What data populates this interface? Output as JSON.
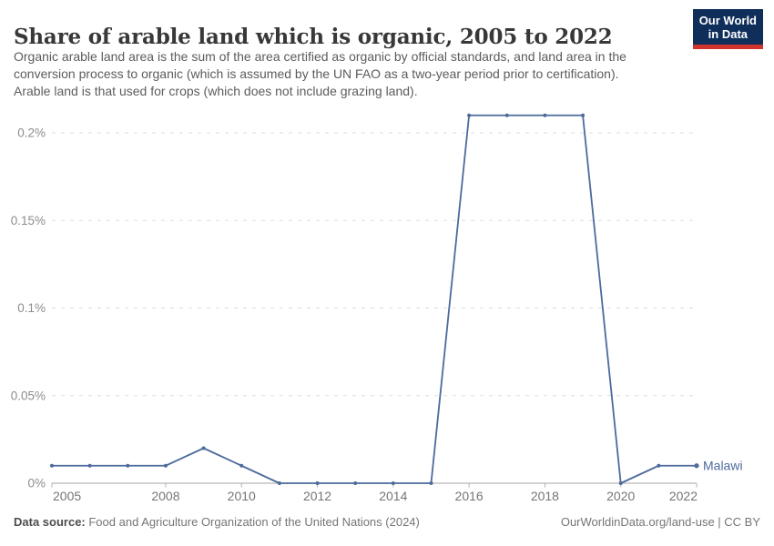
{
  "header": {
    "title": "Share of arable land which is organic, 2005 to 2022",
    "subtitle_lines": [
      "Organic arable land area is the sum of the area certified as organic by official standards, and land area in the",
      "conversion process to organic (which is assumed by the UN FAO as a two-year period prior to certification).",
      "Arable land is that used for crops (which does not include grazing land)."
    ],
    "logo": {
      "line1": "Our World",
      "line2": "in Data",
      "bg": "#0f2e5a",
      "accent": "#d0342c"
    }
  },
  "footer": {
    "source_label": "Data source:",
    "source_text": " Food and Agriculture Organization of the United Nations (2024)",
    "right_text": "OurWorldinData.org/land-use | CC BY"
  },
  "chart_data": {
    "type": "line",
    "title": "Share of arable land which is organic, 2005 to 2022",
    "x": [
      2005,
      2006,
      2007,
      2008,
      2009,
      2010,
      2011,
      2012,
      2013,
      2014,
      2015,
      2016,
      2017,
      2018,
      2019,
      2020,
      2021,
      2022
    ],
    "series": [
      {
        "name": "Malawi",
        "color": "#4c6a9c",
        "values": [
          0.01,
          0.01,
          0.01,
          0.01,
          0.02,
          0.01,
          0,
          0,
          0,
          0,
          0,
          0.21,
          0.21,
          0.21,
          0.21,
          0,
          0.01,
          0.01
        ]
      }
    ],
    "unit": "%",
    "ylim": [
      0,
      0.21
    ],
    "yticks": [
      {
        "v": 0,
        "label": "0%"
      },
      {
        "v": 0.05,
        "label": "0.05%"
      },
      {
        "v": 0.1,
        "label": "0.1%"
      },
      {
        "v": 0.15,
        "label": "0.15%"
      },
      {
        "v": 0.2,
        "label": "0.2%"
      }
    ],
    "xticks": [
      2005,
      2008,
      2010,
      2012,
      2014,
      2016,
      2018,
      2020,
      2022
    ],
    "grid": "dashed-horizontal",
    "legend_position": "end-of-line",
    "end_label": "Malawi",
    "colors": {
      "gridline": "#dedede",
      "axis": "#a5a5a5",
      "tick": "#b0b0b0",
      "y_label": "#8c8c8c",
      "x_label": "#757575"
    }
  }
}
